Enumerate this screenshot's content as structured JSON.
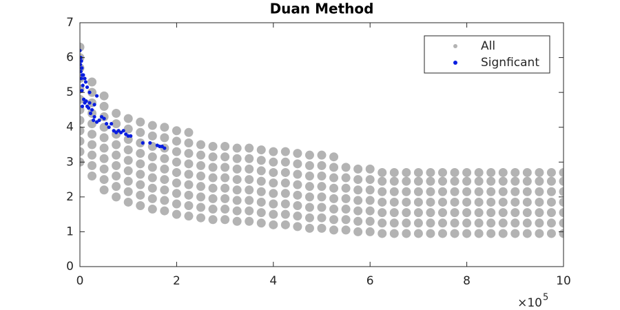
{
  "chart_data": {
    "type": "scatter",
    "title": "Duan Method",
    "x_multiplier": "×10",
    "x_exponent": 5,
    "xlim": [
      0,
      10
    ],
    "xticks": [
      0,
      2,
      4,
      6,
      8,
      10
    ],
    "ylim": [
      0,
      7
    ],
    "yticks": [
      0,
      1,
      2,
      3,
      4,
      5,
      6,
      7
    ],
    "legend": "northeast",
    "series": [
      {
        "name": "All",
        "color": "#b3b3b3",
        "x": [
          0,
          0,
          0,
          0,
          0,
          0,
          0,
          0,
          0,
          0,
          0,
          0,
          0.25,
          0.25,
          0.25,
          0.25,
          0.25,
          0.25,
          0.25,
          0.25,
          0.25,
          0.25,
          0.5,
          0.5,
          0.5,
          0.5,
          0.5,
          0.5,
          0.5,
          0.5,
          0.5,
          0.5,
          0.75,
          0.75,
          0.75,
          0.75,
          0.75,
          0.75,
          0.75,
          0.75,
          0.75,
          1,
          1,
          1,
          1,
          1,
          1,
          1,
          1,
          1,
          1.25,
          1.25,
          1.25,
          1.25,
          1.25,
          1.25,
          1.25,
          1.25,
          1.25,
          1.5,
          1.5,
          1.5,
          1.5,
          1.5,
          1.5,
          1.5,
          1.5,
          1.5,
          1.75,
          1.75,
          1.75,
          1.75,
          1.75,
          1.75,
          1.75,
          1.75,
          1.75,
          2,
          2,
          2,
          2,
          2,
          2,
          2,
          2,
          2,
          2.25,
          2.25,
          2.25,
          2.25,
          2.25,
          2.25,
          2.25,
          2.25,
          2.25,
          2.5,
          2.5,
          2.5,
          2.5,
          2.5,
          2.5,
          2.5,
          2.5,
          2.75,
          2.75,
          2.75,
          2.75,
          2.75,
          2.75,
          2.75,
          2.75,
          3,
          3,
          3,
          3,
          3,
          3,
          3,
          3,
          3.25,
          3.25,
          3.25,
          3.25,
          3.25,
          3.25,
          3.25,
          3.25,
          3.5,
          3.5,
          3.5,
          3.5,
          3.5,
          3.5,
          3.5,
          3.5,
          3.75,
          3.75,
          3.75,
          3.75,
          3.75,
          3.75,
          3.75,
          3.75,
          4,
          4,
          4,
          4,
          4,
          4,
          4,
          4,
          4.25,
          4.25,
          4.25,
          4.25,
          4.25,
          4.25,
          4.25,
          4.25,
          4.5,
          4.5,
          4.5,
          4.5,
          4.5,
          4.5,
          4.5,
          4.5,
          4.75,
          4.75,
          4.75,
          4.75,
          4.75,
          4.75,
          4.75,
          4.75,
          5,
          5,
          5,
          5,
          5,
          5,
          5,
          5,
          5.25,
          5.25,
          5.25,
          5.25,
          5.25,
          5.25,
          5.25,
          5.25,
          5.5,
          5.5,
          5.5,
          5.5,
          5.5,
          5.5,
          5.5,
          5.75,
          5.75,
          5.75,
          5.75,
          5.75,
          5.75,
          5.75,
          6,
          6,
          6,
          6,
          6,
          6,
          6,
          6.25,
          6.25,
          6.25,
          6.25,
          6.25,
          6.25,
          6.25,
          6.5,
          6.5,
          6.5,
          6.5,
          6.5,
          6.5,
          6.5,
          6.75,
          6.75,
          6.75,
          6.75,
          6.75,
          6.75,
          6.75,
          7,
          7,
          7,
          7,
          7,
          7,
          7,
          7.25,
          7.25,
          7.25,
          7.25,
          7.25,
          7.25,
          7.25,
          7.5,
          7.5,
          7.5,
          7.5,
          7.5,
          7.5,
          7.5,
          7.75,
          7.75,
          7.75,
          7.75,
          7.75,
          7.75,
          7.75,
          8,
          8,
          8,
          8,
          8,
          8,
          8,
          8.25,
          8.25,
          8.25,
          8.25,
          8.25,
          8.25,
          8.25,
          8.5,
          8.5,
          8.5,
          8.5,
          8.5,
          8.5,
          8.5,
          8.75,
          8.75,
          8.75,
          8.75,
          8.75,
          8.75,
          8.75,
          9,
          9,
          9,
          9,
          9,
          9,
          9,
          9.25,
          9.25,
          9.25,
          9.25,
          9.25,
          9.25,
          9.25,
          9.5,
          9.5,
          9.5,
          9.5,
          9.5,
          9.5,
          9.5,
          9.75,
          9.75,
          9.75,
          9.75,
          9.75,
          9.75,
          9.75,
          10,
          10,
          10,
          10,
          10,
          10,
          10
        ],
        "values": [
          3.0,
          3.3,
          3.6,
          3.9,
          4.2,
          4.5,
          4.8,
          5.1,
          5.4,
          5.7,
          6.0,
          6.3,
          2.6,
          2.9,
          3.2,
          3.5,
          3.8,
          4.1,
          4.4,
          4.7,
          5.0,
          5.3,
          2.2,
          2.5,
          2.8,
          3.1,
          3.4,
          3.7,
          4.0,
          4.3,
          4.6,
          4.9,
          2.0,
          2.3,
          2.6,
          2.9,
          3.2,
          3.5,
          3.8,
          4.1,
          4.4,
          1.85,
          2.15,
          2.45,
          2.75,
          3.05,
          3.35,
          3.65,
          3.95,
          4.25,
          1.75,
          2.05,
          2.35,
          2.65,
          2.95,
          3.25,
          3.55,
          3.85,
          4.15,
          1.65,
          1.95,
          2.25,
          2.55,
          2.85,
          3.15,
          3.45,
          3.75,
          4.05,
          1.6,
          1.9,
          2.2,
          2.5,
          2.8,
          3.1,
          3.4,
          3.7,
          4.0,
          1.5,
          1.8,
          2.1,
          2.4,
          2.7,
          3.0,
          3.3,
          3.6,
          3.9,
          1.45,
          1.75,
          2.05,
          2.35,
          2.65,
          2.95,
          3.25,
          3.55,
          3.85,
          1.4,
          1.7,
          2.0,
          2.3,
          2.6,
          2.9,
          3.2,
          3.5,
          1.35,
          1.65,
          1.95,
          2.25,
          2.55,
          2.85,
          3.15,
          3.45,
          1.35,
          1.65,
          1.95,
          2.25,
          2.55,
          2.85,
          3.15,
          3.45,
          1.3,
          1.6,
          1.9,
          2.2,
          2.5,
          2.8,
          3.1,
          3.4,
          1.3,
          1.6,
          1.9,
          2.2,
          2.5,
          2.8,
          3.1,
          3.4,
          1.25,
          1.55,
          1.85,
          2.15,
          2.45,
          2.75,
          3.05,
          3.35,
          1.2,
          1.5,
          1.8,
          2.1,
          2.4,
          2.7,
          3.0,
          3.3,
          1.2,
          1.5,
          1.8,
          2.1,
          2.4,
          2.7,
          3.0,
          3.3,
          1.15,
          1.45,
          1.75,
          2.05,
          2.35,
          2.65,
          2.95,
          3.25,
          1.1,
          1.4,
          1.7,
          2.0,
          2.3,
          2.6,
          2.9,
          3.2,
          1.1,
          1.4,
          1.7,
          2.0,
          2.3,
          2.6,
          2.9,
          3.2,
          1.05,
          1.35,
          1.65,
          1.95,
          2.25,
          2.55,
          2.85,
          3.15,
          1.05,
          1.35,
          1.65,
          1.95,
          2.25,
          2.55,
          2.85,
          1.0,
          1.3,
          1.6,
          1.9,
          2.2,
          2.5,
          2.8,
          1.0,
          1.3,
          1.6,
          1.9,
          2.2,
          2.5,
          2.8,
          0.95,
          1.25,
          1.55,
          1.85,
          2.15,
          2.45,
          2.7,
          0.95,
          1.25,
          1.55,
          1.85,
          2.15,
          2.45,
          2.7,
          0.95,
          1.25,
          1.55,
          1.85,
          2.15,
          2.45,
          2.7,
          0.95,
          1.25,
          1.55,
          1.85,
          2.15,
          2.45,
          2.7,
          0.95,
          1.25,
          1.55,
          1.85,
          2.15,
          2.45,
          2.7,
          0.95,
          1.25,
          1.55,
          1.85,
          2.15,
          2.45,
          2.7,
          0.95,
          1.25,
          1.55,
          1.85,
          2.15,
          2.45,
          2.7,
          0.95,
          1.25,
          1.55,
          1.85,
          2.15,
          2.45,
          2.7,
          0.95,
          1.25,
          1.55,
          1.85,
          2.15,
          2.45,
          2.7,
          0.95,
          1.25,
          1.55,
          1.85,
          2.15,
          2.45,
          2.7,
          0.95,
          1.25,
          1.55,
          1.85,
          2.15,
          2.45,
          2.7,
          0.95,
          1.25,
          1.55,
          1.85,
          2.15,
          2.45,
          2.7,
          0.95,
          1.25,
          1.55,
          1.85,
          2.15,
          2.45,
          2.7,
          0.95,
          1.25,
          1.55,
          1.85,
          2.15,
          2.45,
          2.7,
          0.95,
          1.25,
          1.55,
          1.85,
          2.15,
          2.45,
          2.7,
          0.95,
          1.25,
          1.55,
          1.85,
          2.15,
          2.45,
          2.7
        ]
      },
      {
        "name": "Signficant",
        "color": "#0a1ee0",
        "x": [
          0.0,
          0.02,
          0.03,
          0.01,
          0.04,
          0.02,
          0.05,
          0.03,
          0.07,
          0.1,
          0.06,
          0.12,
          0.15,
          0.08,
          0.05,
          0.13,
          0.18,
          0.22,
          0.28,
          0.35,
          0.04,
          0.2,
          0.1,
          0.15,
          0.2,
          0.25,
          0.3,
          0.35,
          0.3,
          0.4,
          0.45,
          0.5,
          0.55,
          0.6,
          0.65,
          0.7,
          0.75,
          0.8,
          0.85,
          0.9,
          0.95,
          1.0,
          1.05,
          1.3,
          1.45,
          1.6,
          1.65,
          1.7,
          1.75
        ],
        "values": [
          6.2,
          6.0,
          5.9,
          5.8,
          5.7,
          5.6,
          5.5,
          5.4,
          5.5,
          5.4,
          5.2,
          5.3,
          5.15,
          4.8,
          4.6,
          4.75,
          4.55,
          4.4,
          4.2,
          4.15,
          5.05,
          5.0,
          4.7,
          4.6,
          4.7,
          4.5,
          4.65,
          4.9,
          4.3,
          4.2,
          4.3,
          4.25,
          4.1,
          4.0,
          4.1,
          3.9,
          3.85,
          3.9,
          3.85,
          3.9,
          3.8,
          3.75,
          3.75,
          3.55,
          3.55,
          3.48,
          3.45,
          3.45,
          3.4
        ]
      }
    ]
  }
}
